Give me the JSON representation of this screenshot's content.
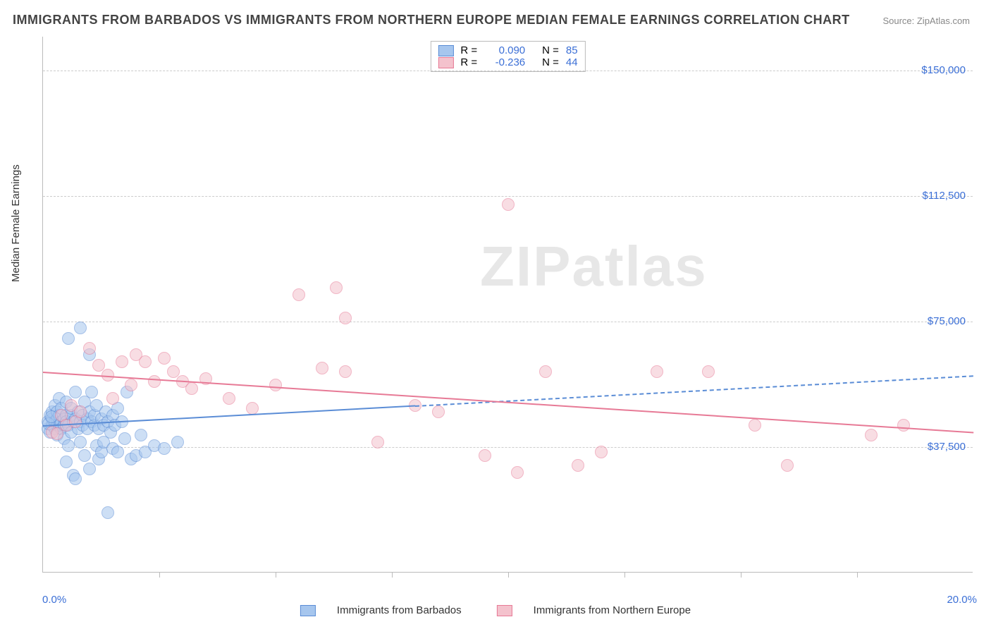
{
  "title": "IMMIGRANTS FROM BARBADOS VS IMMIGRANTS FROM NORTHERN EUROPE MEDIAN FEMALE EARNINGS CORRELATION CHART",
  "source": "Source: ZipAtlas.com",
  "watermark": "ZIPatlas",
  "ylabel": "Median Female Earnings",
  "chart": {
    "type": "scatter-with-trend",
    "xlim": [
      0,
      20
    ],
    "ylim": [
      0,
      160000
    ],
    "x_tick_label_min": "0.0%",
    "x_tick_label_max": "20.0%",
    "y_gridlines": [
      37500,
      75000,
      112500,
      150000
    ],
    "y_tick_labels": [
      "$37,500",
      "$75,000",
      "$112,500",
      "$150,000"
    ],
    "x_ticks": [
      0,
      2.5,
      5,
      7.5,
      10,
      12.5,
      15,
      17.5,
      20
    ],
    "background_color": "#ffffff",
    "grid_color": "#cccccc",
    "axis_color": "#bbbbbb",
    "tick_label_color": "#3b6fd6",
    "marker_radius": 9,
    "marker_opacity": 0.55,
    "line_width": 2
  },
  "series": [
    {
      "name": "Immigrants from Barbados",
      "color_fill": "#a6c6ee",
      "color_stroke": "#5b8dd6",
      "r": 0.09,
      "n": 85,
      "trend": {
        "x0": 0,
        "y0": 44000,
        "x1": 20,
        "y1": 59000,
        "solid_until_x": 8.0
      },
      "points": [
        [
          0.1,
          43000
        ],
        [
          0.1,
          45000
        ],
        [
          0.15,
          47000
        ],
        [
          0.15,
          42000
        ],
        [
          0.2,
          44000
        ],
        [
          0.2,
          46000
        ],
        [
          0.2,
          48000
        ],
        [
          0.25,
          43000
        ],
        [
          0.25,
          45000
        ],
        [
          0.25,
          50000
        ],
        [
          0.3,
          44000
        ],
        [
          0.3,
          46000
        ],
        [
          0.3,
          48000
        ],
        [
          0.3,
          41000
        ],
        [
          0.35,
          47000
        ],
        [
          0.35,
          44000
        ],
        [
          0.35,
          52000
        ],
        [
          0.4,
          45000
        ],
        [
          0.4,
          43000
        ],
        [
          0.4,
          49000
        ],
        [
          0.45,
          46000
        ],
        [
          0.45,
          44000
        ],
        [
          0.45,
          40000
        ],
        [
          0.5,
          33000
        ],
        [
          0.5,
          47000
        ],
        [
          0.5,
          51000
        ],
        [
          0.5,
          45000
        ],
        [
          0.55,
          70000
        ],
        [
          0.55,
          44000
        ],
        [
          0.55,
          38000
        ],
        [
          0.6,
          47000
        ],
        [
          0.6,
          42000
        ],
        [
          0.6,
          49000
        ],
        [
          0.65,
          45000
        ],
        [
          0.65,
          29000
        ],
        [
          0.7,
          28000
        ],
        [
          0.7,
          46000
        ],
        [
          0.7,
          54000
        ],
        [
          0.75,
          43000
        ],
        [
          0.75,
          48000
        ],
        [
          0.8,
          73000
        ],
        [
          0.8,
          45000
        ],
        [
          0.8,
          39000
        ],
        [
          0.85,
          47000
        ],
        [
          0.85,
          44000
        ],
        [
          0.9,
          35000
        ],
        [
          0.9,
          51000
        ],
        [
          0.95,
          46000
        ],
        [
          0.95,
          43000
        ],
        [
          1.0,
          65000
        ],
        [
          1.0,
          48000
        ],
        [
          1.0,
          31000
        ],
        [
          1.05,
          45000
        ],
        [
          1.05,
          54000
        ],
        [
          1.1,
          44000
        ],
        [
          1.1,
          47000
        ],
        [
          1.15,
          38000
        ],
        [
          1.15,
          50000
        ],
        [
          1.2,
          43000
        ],
        [
          1.2,
          34000
        ],
        [
          1.25,
          36000
        ],
        [
          1.25,
          46000
        ],
        [
          1.3,
          44000
        ],
        [
          1.3,
          39000
        ],
        [
          1.35,
          48000
        ],
        [
          1.4,
          18000
        ],
        [
          1.4,
          45000
        ],
        [
          1.45,
          42000
        ],
        [
          1.5,
          37000
        ],
        [
          1.5,
          47000
        ],
        [
          1.55,
          44000
        ],
        [
          1.6,
          36000
        ],
        [
          1.6,
          49000
        ],
        [
          1.7,
          45000
        ],
        [
          1.75,
          40000
        ],
        [
          1.8,
          54000
        ],
        [
          1.9,
          34000
        ],
        [
          2.0,
          35000
        ],
        [
          2.1,
          41000
        ],
        [
          2.2,
          36000
        ],
        [
          2.4,
          38000
        ],
        [
          2.6,
          37000
        ],
        [
          2.9,
          39000
        ],
        [
          0.12,
          44500
        ],
        [
          0.18,
          46500
        ]
      ]
    },
    {
      "name": "Immigrants from Northern Europe",
      "color_fill": "#f4c2cd",
      "color_stroke": "#e77a96",
      "r": -0.236,
      "n": 44,
      "trend": {
        "x0": 0,
        "y0": 60000,
        "x1": 20,
        "y1": 42000,
        "solid_until_x": 20
      },
      "points": [
        [
          0.2,
          42000
        ],
        [
          0.3,
          41500
        ],
        [
          0.4,
          47000
        ],
        [
          0.5,
          44000
        ],
        [
          0.6,
          50000
        ],
        [
          0.7,
          45000
        ],
        [
          0.8,
          48000
        ],
        [
          1.0,
          67000
        ],
        [
          1.2,
          62000
        ],
        [
          1.4,
          59000
        ],
        [
          1.5,
          52000
        ],
        [
          1.7,
          63000
        ],
        [
          1.9,
          56000
        ],
        [
          2.0,
          65000
        ],
        [
          2.2,
          63000
        ],
        [
          2.4,
          57000
        ],
        [
          2.6,
          64000
        ],
        [
          2.8,
          60000
        ],
        [
          3.0,
          57000
        ],
        [
          3.2,
          55000
        ],
        [
          3.5,
          58000
        ],
        [
          4.0,
          52000
        ],
        [
          4.5,
          49000
        ],
        [
          5.0,
          56000
        ],
        [
          5.5,
          83000
        ],
        [
          6.0,
          61000
        ],
        [
          6.3,
          85000
        ],
        [
          6.5,
          76000
        ],
        [
          6.5,
          60000
        ],
        [
          7.2,
          39000
        ],
        [
          8.0,
          50000
        ],
        [
          8.5,
          48000
        ],
        [
          9.5,
          35000
        ],
        [
          10.2,
          30000
        ],
        [
          10.0,
          110000
        ],
        [
          10.8,
          60000
        ],
        [
          11.5,
          32000
        ],
        [
          12.0,
          36000
        ],
        [
          13.2,
          60000
        ],
        [
          14.3,
          60000
        ],
        [
          15.3,
          44000
        ],
        [
          16.0,
          32000
        ],
        [
          17.8,
          41000
        ],
        [
          18.5,
          44000
        ]
      ]
    }
  ],
  "legend_top": {
    "r_label": "R =",
    "n_label": "N ="
  },
  "legend_bottom_labels": [
    "Immigrants from Barbados",
    "Immigrants from Northern Europe"
  ]
}
